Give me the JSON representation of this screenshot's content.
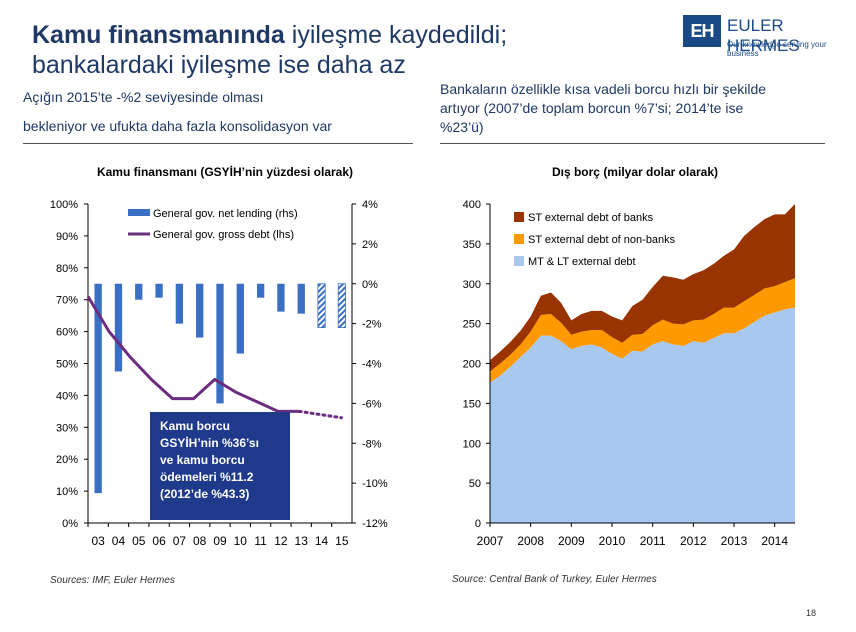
{
  "header": {
    "title_bold": "Kamu finansmanında",
    "title_rest": " iyileşme kaydedildi;",
    "title_line2": "bankalardaki iyileşme ise daha az",
    "logo_mark": "EH",
    "logo_name": "EULER HERMES",
    "logo_tagline": "Our knowledge serving your business"
  },
  "left_text": {
    "line1": "Açığın 2015’te -%2 seviyesinde olması",
    "line2": "bekleniyor ve ufukta daha fazla konsolidasyon var"
  },
  "right_text": {
    "line1": "Bankaların özellikle kısa vadeli borcu hızlı bir şekilde",
    "line2": "artıyor (2007’de toplam  borcun %7’si; 2014’te ise",
    "line3": "%23’ü)"
  },
  "callout": {
    "line1": "Kamu borcu",
    "line2": "GSYİH’nin %36’sı",
    "line3": "ve kamu borcu",
    "line4": "ödemeleri %11.2",
    "line5": "(2012’de %43.3)"
  },
  "page_number": "18",
  "colors": {
    "title": "#1f3864",
    "bar": "#3a6fc4",
    "debt_line": "#6b2d7e",
    "mt_lt": "#a8c8f0",
    "st_nonbank": "#ff9900",
    "st_bank": "#993300",
    "callout": "#1f3a8a"
  },
  "chart_data": [
    {
      "type": "bar",
      "title": "Kamu finansmanı (GSYİH’nin yüzdesi olarak)",
      "source": "Sources: IMF, Euler Hermes",
      "categories": [
        "03",
        "04",
        "05",
        "06",
        "07",
        "08",
        "09",
        "10",
        "11",
        "12",
        "13",
        "14",
        "15"
      ],
      "left_axis": {
        "ticks": [
          "100%",
          "90%",
          "80%",
          "70%",
          "60%",
          "50%",
          "40%",
          "30%",
          "20%",
          "10%",
          "0%"
        ],
        "range": [
          0,
          100
        ]
      },
      "right_axis": {
        "ticks": [
          "4%",
          "2%",
          "0%",
          "-2%",
          "-4%",
          "-6%",
          "-8%",
          "-10%",
          "-12%"
        ],
        "range": [
          -12,
          4
        ]
      },
      "series": [
        {
          "name": "General gov. net lending (rhs)",
          "type": "bar",
          "axis": "right",
          "values": [
            -10.5,
            -4.4,
            -0.8,
            -0.7,
            -2.0,
            -2.7,
            -6.0,
            -3.5,
            -0.7,
            -1.4,
            -1.5,
            -2.2,
            -2.2
          ],
          "forecast": [
            false,
            false,
            false,
            false,
            false,
            false,
            false,
            false,
            false,
            false,
            false,
            true,
            true
          ]
        },
        {
          "name": "General gov. gross debt (lhs)",
          "type": "line",
          "axis": "left",
          "values": [
            71,
            60,
            52,
            45,
            39,
            39,
            45,
            41,
            38,
            35,
            35,
            34,
            33
          ],
          "forecast_from_index": 10
        }
      ]
    },
    {
      "type": "area",
      "title": "Dış borç (milyar dolar olarak)",
      "source": "Source: Central Bank of Turkey, Euler Hermes",
      "x_ticks": [
        "2007",
        "2008",
        "2009",
        "2010",
        "2011",
        "2012",
        "2013",
        "2014"
      ],
      "y_ticks": [
        "400",
        "350",
        "300",
        "250",
        "200",
        "150",
        "100",
        "50",
        "0"
      ],
      "ylim": [
        0,
        400
      ],
      "x_quarters": [
        "2007Q1",
        "2007Q2",
        "2007Q3",
        "2007Q4",
        "2008Q1",
        "2008Q2",
        "2008Q3",
        "2008Q4",
        "2009Q1",
        "2009Q2",
        "2009Q3",
        "2009Q4",
        "2010Q1",
        "2010Q2",
        "2010Q3",
        "2010Q4",
        "2011Q1",
        "2011Q2",
        "2011Q3",
        "2011Q4",
        "2012Q1",
        "2012Q2",
        "2012Q3",
        "2012Q4",
        "2013Q1",
        "2013Q2",
        "2013Q3",
        "2013Q4",
        "2014Q1",
        "2014Q2",
        "2014Q3"
      ],
      "series": [
        {
          "name": "MT & LT external debt",
          "values": [
            176,
            185,
            196,
            208,
            220,
            235,
            235,
            228,
            218,
            222,
            224,
            220,
            212,
            206,
            216,
            215,
            224,
            228,
            224,
            222,
            228,
            226,
            232,
            238,
            238,
            244,
            252,
            260,
            264,
            268,
            270
          ]
        },
        {
          "name": "ST external debt of non-banks",
          "values": [
            14,
            15,
            15,
            16,
            20,
            26,
            27,
            23,
            18,
            18,
            18,
            22,
            21,
            20,
            20,
            22,
            24,
            27,
            26,
            27,
            26,
            29,
            30,
            32,
            32,
            34,
            34,
            34,
            33,
            34,
            37
          ]
        },
        {
          "name": "ST external debt of banks",
          "values": [
            14,
            15,
            16,
            17,
            19,
            24,
            27,
            25,
            18,
            22,
            24,
            24,
            26,
            28,
            36,
            43,
            48,
            55,
            58,
            56,
            58,
            62,
            63,
            65,
            73,
            82,
            85,
            87,
            90,
            85,
            93
          ]
        }
      ]
    }
  ]
}
